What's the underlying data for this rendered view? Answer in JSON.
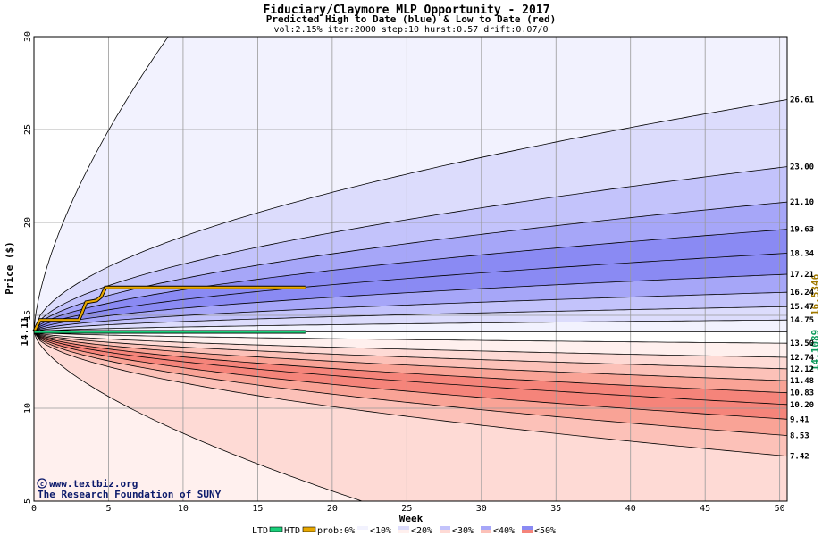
{
  "chart_data": {
    "type": "area",
    "title": "Fiduciary/Claymore MLP Opportunity  - 2017",
    "subtitle": "Predicted High to Date (blue) &  Low to Date (red)",
    "params": "vol:2.15% iter:2000 step:10 hurst:0.57 drift:0.07/0",
    "xlabel": "Week",
    "ylabel": "Price ($)",
    "xlim": [
      0,
      50.5
    ],
    "ylim": [
      5,
      30
    ],
    "xticks": [
      0,
      5,
      10,
      15,
      20,
      25,
      30,
      35,
      40,
      45,
      50
    ],
    "yticks": [
      5,
      10,
      15,
      20,
      25,
      30
    ],
    "start_price": 14.11,
    "start_price_label": "14.11",
    "grid": true,
    "high_band_colors": [
      "#f2f2fe",
      "#dcdcfc",
      "#c3c3fb",
      "#a6a6f8",
      "#8a8af3"
    ],
    "low_band_colors": [
      "#fff0ee",
      "#fedad5",
      "#fcc1b8",
      "#f9a396",
      "#f5847a"
    ],
    "high_percentile_final": [
      {
        "week": 9.0,
        "value": 30
      },
      {
        "week": 50.5,
        "value": 26.61
      },
      {
        "week": 50.5,
        "value": 23.0
      },
      {
        "week": 50.5,
        "value": 21.1
      },
      {
        "week": 50.5,
        "value": 19.63
      },
      {
        "week": 50.5,
        "value": 18.34
      },
      {
        "week": 50.5,
        "value": 17.21
      },
      {
        "week": 50.5,
        "value": 16.24
      },
      {
        "week": 50.5,
        "value": 15.47
      },
      {
        "week": 50.5,
        "value": 14.75
      }
    ],
    "low_percentile_final": [
      {
        "week": 50.5,
        "value": 13.5
      },
      {
        "week": 50.5,
        "value": 12.74
      },
      {
        "week": 50.5,
        "value": 12.12
      },
      {
        "week": 50.5,
        "value": 11.48
      },
      {
        "week": 50.5,
        "value": 10.83
      },
      {
        "week": 50.5,
        "value": 10.2
      },
      {
        "week": 50.5,
        "value": 9.41
      },
      {
        "week": 50.5,
        "value": 8.53
      },
      {
        "week": 50.5,
        "value": 7.42
      },
      {
        "week": 22.0,
        "value": 5
      }
    ],
    "right_labels": [
      "26.61",
      "23.00",
      "21.10",
      "19.63",
      "18.34",
      "17.21",
      "16.24",
      "15.47",
      "14.75",
      "13.50",
      "12.74",
      "12.12",
      "11.48",
      "10.83",
      "10.20",
      "9.41",
      "8.53",
      "7.42"
    ],
    "series": [
      {
        "name": "HTD",
        "color": "#e8a800",
        "points": [
          [
            0,
            14.11
          ],
          [
            0.4,
            14.75
          ],
          [
            1,
            14.75
          ],
          [
            2,
            14.75
          ],
          [
            3,
            14.75
          ],
          [
            3.2,
            15.1
          ],
          [
            3.5,
            15.7
          ],
          [
            4.2,
            15.8
          ],
          [
            4.5,
            16.0
          ],
          [
            4.8,
            16.5
          ],
          [
            6,
            16.5
          ],
          [
            8,
            16.5
          ],
          [
            10,
            16.5
          ],
          [
            12,
            16.5
          ],
          [
            14,
            16.5
          ],
          [
            16,
            16.5
          ],
          [
            18.2,
            16.5
          ]
        ]
      },
      {
        "name": "LTD",
        "color": "#1ad07a",
        "points": [
          [
            0,
            14.11
          ],
          [
            2,
            14.11
          ],
          [
            4,
            14.11
          ],
          [
            6,
            14.11
          ],
          [
            8,
            14.11
          ],
          [
            10,
            14.11
          ],
          [
            12,
            14.11
          ],
          [
            14,
            14.11
          ],
          [
            16,
            14.11
          ],
          [
            18.2,
            14.11
          ]
        ]
      }
    ],
    "htd_label": "16.5346",
    "ltd_label": "14.1089",
    "legend": {
      "ltd": "LTD",
      "htd": "HTD",
      "prob_prefix": "prob:0%",
      "items": [
        "<10%",
        "<20%",
        "<30%",
        "<40%",
        "<50%"
      ]
    },
    "credits": {
      "site": "www.textbiz.org",
      "org": "The Research Foundation of SUNY"
    }
  }
}
